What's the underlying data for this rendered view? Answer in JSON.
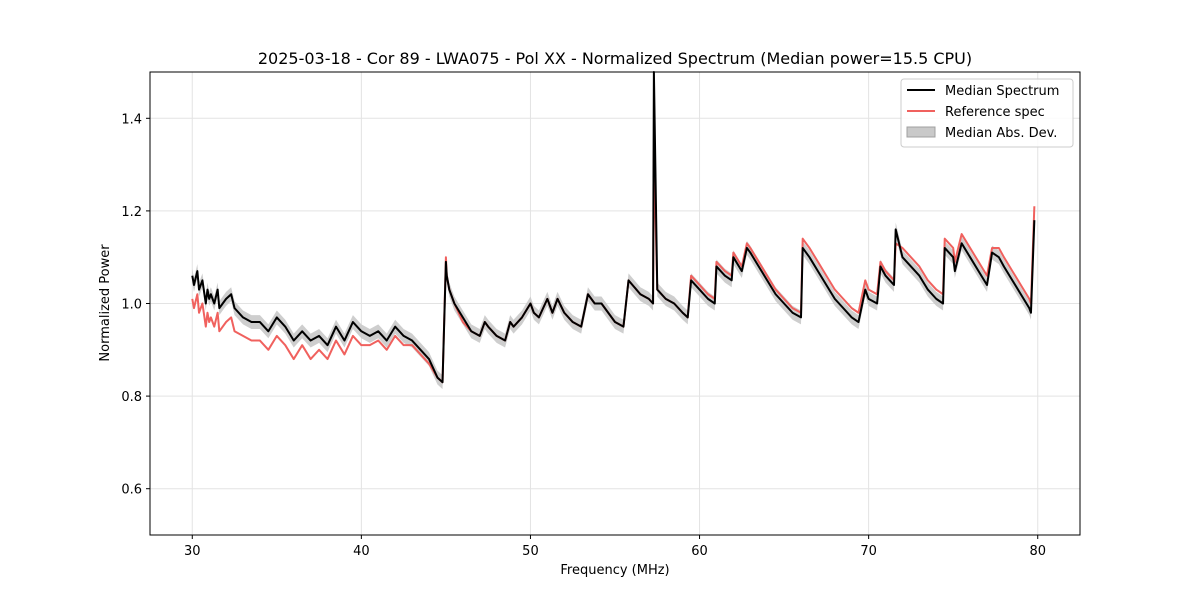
{
  "chart_data": {
    "type": "line",
    "title": "2025-03-18 - Cor 89 - LWA075 - Pol XX - Normalized Spectrum (Median power=15.5 CPU)",
    "xlabel": "Frequency (MHz)",
    "ylabel": "Normalized Power",
    "xlim": [
      27.5,
      82.5
    ],
    "ylim": [
      0.5,
      1.5
    ],
    "xticks": [
      30,
      40,
      50,
      60,
      70,
      80
    ],
    "xtick_labels": [
      "30",
      "40",
      "50",
      "60",
      "70",
      "80"
    ],
    "yticks": [
      0.6,
      0.8,
      1.0,
      1.2,
      1.4
    ],
    "ytick_labels": [
      "0.6",
      "0.8",
      "1.0",
      "1.2",
      "1.4"
    ],
    "grid": true,
    "legend_position": "top-right",
    "series": [
      {
        "name": "Median Spectrum",
        "color": "#000000",
        "x": [
          30.0,
          30.1,
          30.3,
          30.4,
          30.6,
          30.8,
          30.9,
          31.0,
          31.1,
          31.3,
          31.5,
          31.6,
          32.0,
          32.3,
          32.5,
          33.0,
          33.5,
          34.0,
          34.5,
          35.0,
          35.5,
          36.0,
          36.5,
          37.0,
          37.5,
          38.0,
          38.5,
          39.0,
          39.5,
          40.0,
          40.5,
          41.0,
          41.5,
          42.0,
          42.5,
          43.0,
          43.5,
          44.0,
          44.5,
          44.8,
          45.0,
          45.05,
          45.2,
          45.5,
          46.0,
          46.5,
          47.0,
          47.3,
          47.5,
          48.0,
          48.5,
          48.8,
          49.0,
          49.5,
          50.0,
          50.2,
          50.5,
          51.0,
          51.3,
          51.6,
          52.0,
          52.5,
          53.0,
          53.4,
          53.8,
          54.2,
          54.6,
          55.0,
          55.5,
          55.8,
          56.5,
          57.0,
          57.25,
          57.3,
          57.5,
          58.0,
          58.5,
          59.0,
          59.3,
          59.5,
          60.0,
          60.5,
          60.9,
          61.0,
          61.5,
          61.9,
          62.0,
          62.5,
          62.8,
          63.0,
          63.5,
          64.0,
          64.5,
          65.0,
          65.5,
          66.0,
          66.1,
          66.5,
          67.0,
          67.5,
          68.0,
          68.5,
          69.0,
          69.4,
          69.8,
          70.0,
          70.5,
          70.7,
          71.0,
          71.5,
          71.6,
          72.0,
          72.5,
          73.0,
          73.5,
          74.0,
          74.4,
          74.5,
          75.0,
          75.1,
          75.5,
          76.0,
          76.5,
          77.0,
          77.3,
          77.7,
          78.0,
          78.5,
          79.0,
          79.5,
          79.6,
          79.8
        ],
        "y": [
          1.06,
          1.04,
          1.07,
          1.03,
          1.05,
          1.0,
          1.03,
          1.01,
          1.02,
          1.0,
          1.03,
          0.99,
          1.01,
          1.02,
          0.99,
          0.97,
          0.96,
          0.96,
          0.94,
          0.97,
          0.95,
          0.92,
          0.94,
          0.92,
          0.93,
          0.91,
          0.95,
          0.92,
          0.96,
          0.94,
          0.93,
          0.94,
          0.92,
          0.95,
          0.93,
          0.92,
          0.9,
          0.88,
          0.84,
          0.83,
          1.09,
          1.06,
          1.03,
          1.0,
          0.97,
          0.94,
          0.93,
          0.96,
          0.95,
          0.93,
          0.92,
          0.96,
          0.95,
          0.97,
          1.0,
          0.98,
          0.97,
          1.01,
          0.98,
          1.01,
          0.98,
          0.96,
          0.95,
          1.02,
          1.0,
          1.0,
          0.98,
          0.96,
          0.95,
          1.05,
          1.02,
          1.01,
          1.0,
          1.5,
          1.03,
          1.01,
          1.0,
          0.98,
          0.97,
          1.05,
          1.03,
          1.01,
          1.0,
          1.08,
          1.06,
          1.05,
          1.1,
          1.07,
          1.12,
          1.11,
          1.08,
          1.05,
          1.02,
          1.0,
          0.98,
          0.97,
          1.12,
          1.1,
          1.07,
          1.04,
          1.01,
          0.99,
          0.97,
          0.96,
          1.03,
          1.01,
          1.0,
          1.08,
          1.06,
          1.04,
          1.16,
          1.1,
          1.08,
          1.06,
          1.03,
          1.01,
          1.0,
          1.12,
          1.1,
          1.07,
          1.13,
          1.1,
          1.07,
          1.04,
          1.11,
          1.1,
          1.08,
          1.05,
          1.02,
          0.99,
          0.98,
          1.18
        ]
      },
      {
        "name": "Reference spec",
        "color": "#f0615e",
        "x": [
          30.0,
          30.1,
          30.3,
          30.4,
          30.6,
          30.8,
          30.9,
          31.0,
          31.1,
          31.3,
          31.5,
          31.6,
          32.0,
          32.3,
          32.5,
          33.0,
          33.5,
          34.0,
          34.5,
          35.0,
          35.5,
          36.0,
          36.5,
          37.0,
          37.5,
          38.0,
          38.5,
          39.0,
          39.5,
          40.0,
          40.5,
          41.0,
          41.5,
          42.0,
          42.5,
          43.0,
          43.5,
          44.0,
          44.5,
          44.8,
          45.0,
          45.05,
          45.2,
          45.5,
          46.0,
          46.5,
          47.0,
          47.3,
          47.5,
          48.0,
          48.5,
          48.8,
          49.0,
          49.5,
          50.0,
          50.2,
          50.5,
          51.0,
          51.3,
          51.6,
          52.0,
          52.5,
          53.0,
          53.4,
          53.8,
          54.2,
          54.6,
          55.0,
          55.5,
          55.8,
          56.5,
          57.0,
          57.25,
          57.3,
          57.5,
          58.0,
          58.5,
          59.0,
          59.3,
          59.5,
          60.0,
          60.5,
          60.9,
          61.0,
          61.5,
          61.9,
          62.0,
          62.5,
          62.8,
          63.0,
          63.5,
          64.0,
          64.5,
          65.0,
          65.5,
          66.0,
          66.1,
          66.5,
          67.0,
          67.5,
          68.0,
          68.5,
          69.0,
          69.4,
          69.8,
          70.0,
          70.5,
          70.7,
          71.0,
          71.5,
          71.6,
          72.0,
          72.5,
          73.0,
          73.5,
          74.0,
          74.4,
          74.5,
          75.0,
          75.1,
          75.5,
          76.0,
          76.5,
          77.0,
          77.3,
          77.7,
          78.0,
          78.5,
          79.0,
          79.5,
          79.6,
          79.8
        ],
        "y": [
          1.01,
          0.99,
          1.02,
          0.98,
          1.0,
          0.95,
          0.98,
          0.96,
          0.97,
          0.95,
          0.98,
          0.94,
          0.96,
          0.97,
          0.94,
          0.93,
          0.92,
          0.92,
          0.9,
          0.93,
          0.91,
          0.88,
          0.91,
          0.88,
          0.9,
          0.88,
          0.92,
          0.89,
          0.93,
          0.91,
          0.91,
          0.92,
          0.9,
          0.93,
          0.91,
          0.91,
          0.89,
          0.87,
          0.84,
          0.83,
          1.1,
          1.06,
          1.03,
          1.0,
          0.96,
          0.94,
          0.93,
          0.96,
          0.95,
          0.93,
          0.92,
          0.96,
          0.95,
          0.97,
          1.0,
          0.98,
          0.97,
          1.01,
          0.98,
          1.01,
          0.98,
          0.96,
          0.95,
          1.02,
          1.0,
          1.0,
          0.98,
          0.96,
          0.95,
          1.05,
          1.02,
          1.01,
          1.0,
          1.33,
          1.03,
          1.01,
          1.0,
          0.98,
          0.97,
          1.06,
          1.04,
          1.02,
          1.01,
          1.09,
          1.07,
          1.06,
          1.11,
          1.08,
          1.13,
          1.12,
          1.09,
          1.06,
          1.03,
          1.01,
          0.99,
          0.98,
          1.14,
          1.12,
          1.09,
          1.06,
          1.03,
          1.01,
          0.99,
          0.98,
          1.05,
          1.03,
          1.02,
          1.09,
          1.07,
          1.05,
          1.13,
          1.12,
          1.1,
          1.08,
          1.05,
          1.03,
          1.02,
          1.14,
          1.12,
          1.09,
          1.15,
          1.12,
          1.09,
          1.06,
          1.12,
          1.12,
          1.1,
          1.07,
          1.04,
          1.01,
          1.0,
          1.21
        ]
      }
    ],
    "mad_band": {
      "name": "Median Abs. Dev.",
      "color": "#c9c9c9",
      "half_width": 0.015
    }
  }
}
